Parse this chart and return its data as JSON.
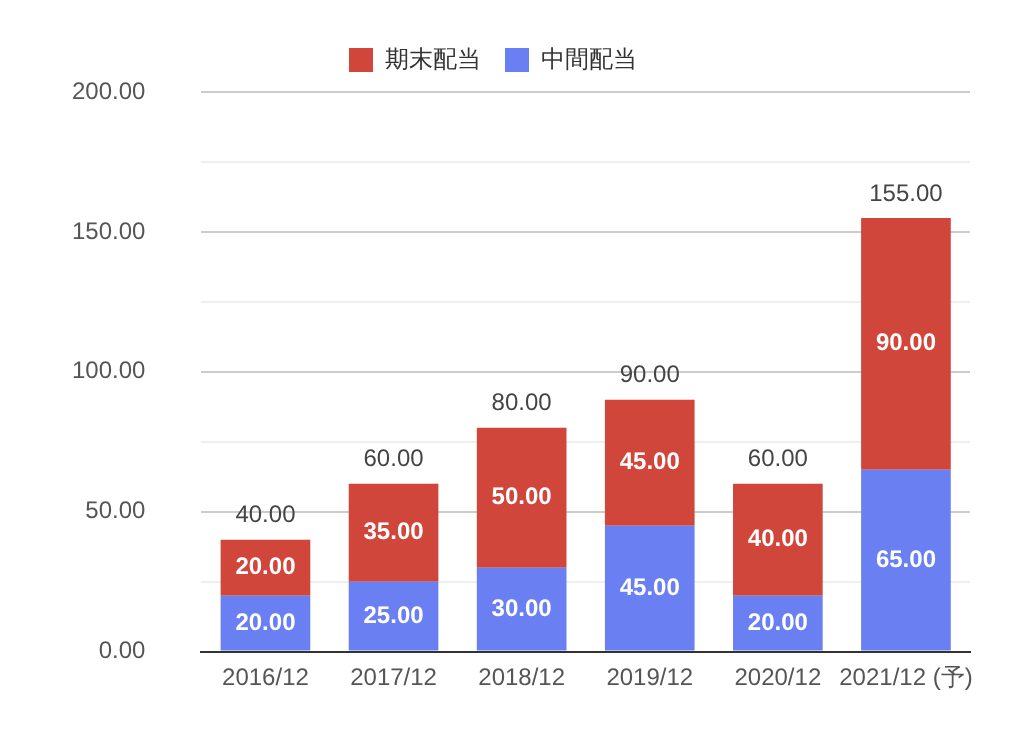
{
  "chart_data": {
    "type": "bar",
    "stacked": true,
    "legend": "top",
    "grid": "y",
    "categories": [
      "2016/12",
      "2017/12",
      "2018/12",
      "2019/12",
      "2020/12",
      "2021/12 (予)"
    ],
    "series": [
      {
        "name": "中間配当",
        "color": "#6a80f2",
        "values": [
          20,
          25,
          30,
          45,
          20,
          65
        ],
        "value_labels": [
          "20.00",
          "25.00",
          "30.00",
          "45.00",
          "20.00",
          "65.00"
        ]
      },
      {
        "name": "期末配当",
        "color": "#d0463b",
        "values": [
          20,
          35,
          50,
          45,
          40,
          90
        ],
        "value_labels": [
          "20.00",
          "35.00",
          "50.00",
          "45.00",
          "40.00",
          "90.00"
        ]
      }
    ],
    "totals": [
      "40.00",
      "60.00",
      "80.00",
      "90.00",
      "60.00",
      "155.00"
    ],
    "ylim": [
      0,
      200
    ],
    "yticks": [
      {
        "value": 0,
        "label": "0.00"
      },
      {
        "value": 25,
        "label": null
      },
      {
        "value": 50,
        "label": "50.00"
      },
      {
        "value": 75,
        "label": null
      },
      {
        "value": 100,
        "label": "100.00"
      },
      {
        "value": 125,
        "label": null
      },
      {
        "value": 150,
        "label": "150.00"
      },
      {
        "value": 175,
        "label": null
      },
      {
        "value": 200,
        "label": "200.00"
      }
    ]
  }
}
